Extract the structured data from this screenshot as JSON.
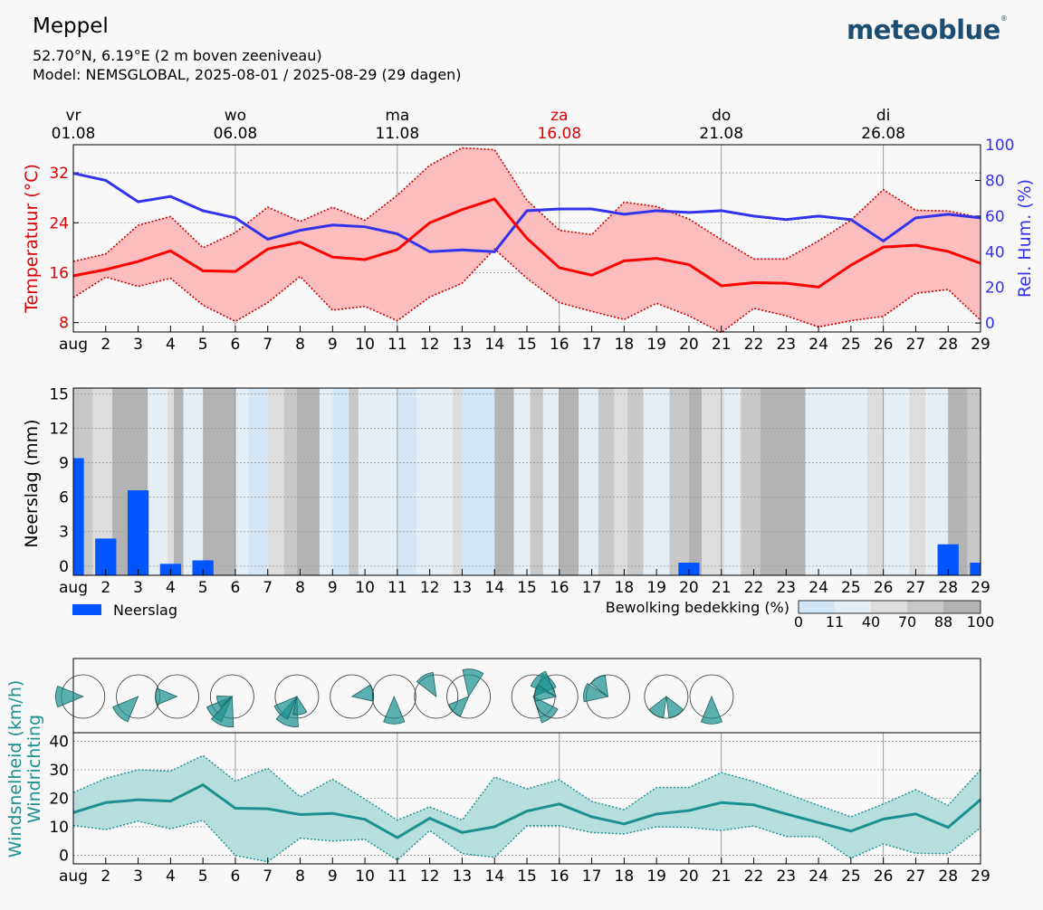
{
  "header": {
    "title": "Meppel",
    "coords": "52.70°N, 6.19°E (2 m boven zeeniveau)",
    "model": "Model: NEMSGLOBAL, 2025-08-01 / 2025-08-29 (29 dagen)",
    "logo": "meteoblue",
    "logo_mark": "®"
  },
  "colors": {
    "temperature": "#ff0000",
    "temp_band": "#fbbdbd",
    "humidity": "#3333ee",
    "precip": "#0055ff",
    "wind": "#1a9090",
    "wind_band": "#b6dedd"
  },
  "top_axis": [
    {
      "weekday": "vr",
      "date": "01.08",
      "day": 1,
      "highlight": false
    },
    {
      "weekday": "wo",
      "date": "06.08",
      "day": 6,
      "highlight": false
    },
    {
      "weekday": "ma",
      "date": "11.08",
      "day": 11,
      "highlight": false
    },
    {
      "weekday": "za",
      "date": "16.08",
      "day": 16,
      "highlight": true
    },
    {
      "weekday": "do",
      "date": "21.08",
      "day": 21,
      "highlight": false
    },
    {
      "weekday": "di",
      "date": "26.08",
      "day": 26,
      "highlight": false
    }
  ],
  "x_ticks": [
    "aug",
    "2",
    "3",
    "4",
    "5",
    "6",
    "7",
    "8",
    "9",
    "10",
    "11",
    "12",
    "13",
    "14",
    "15",
    "16",
    "17",
    "18",
    "19",
    "20",
    "21",
    "22",
    "23",
    "24",
    "25",
    "26",
    "27",
    "28",
    "29"
  ],
  "chart_data": [
    {
      "type": "line",
      "x": [
        1,
        2,
        3,
        4,
        5,
        6,
        7,
        8,
        9,
        10,
        11,
        12,
        13,
        14,
        15,
        16,
        17,
        18,
        19,
        20,
        21,
        22,
        23,
        24,
        25,
        26,
        27,
        28,
        29
      ],
      "ylabel": "Temperatuur (°C)",
      "y2label": "Rel. Hum. (%)",
      "ylim": [
        6.5,
        36.5
      ],
      "yticks": [
        8,
        16,
        24,
        32
      ],
      "y2lim": [
        -5,
        100
      ],
      "y2ticks": [
        0,
        20,
        40,
        60,
        80,
        100
      ],
      "series": [
        {
          "role": "temp_mean",
          "values": [
            15.5,
            16.5,
            17.8,
            19.5,
            16.3,
            16.2,
            19.8,
            20.9,
            18.5,
            18.1,
            19.7,
            24.0,
            26.1,
            27.8,
            21.5,
            16.8,
            15.6,
            17.9,
            18.3,
            17.3,
            13.9,
            14.4,
            14.3,
            13.7,
            17.2,
            20.1,
            20.4,
            19.4,
            17.5
          ]
        },
        {
          "role": "temp_max",
          "values": [
            17.8,
            19.0,
            23.6,
            25.0,
            20.0,
            22.4,
            26.5,
            24.2,
            26.5,
            24.4,
            28.4,
            33.2,
            36.0,
            35.7,
            27.6,
            22.8,
            22.1,
            27.3,
            26.6,
            24.6,
            21.3,
            18.2,
            18.2,
            21.1,
            24.4,
            29.3,
            26.0,
            25.9,
            24.8
          ]
        },
        {
          "role": "temp_min",
          "values": [
            12.0,
            15.3,
            13.8,
            15.1,
            10.8,
            8.2,
            11.2,
            15.4,
            10.0,
            10.6,
            8.3,
            12.1,
            14.3,
            19.8,
            15.1,
            11.2,
            9.8,
            8.5,
            11.1,
            9.1,
            6.4,
            10.3,
            9.1,
            7.3,
            8.3,
            9.0,
            12.7,
            13.3,
            8.4
          ]
        },
        {
          "role": "humidity",
          "values": [
            84,
            80,
            68,
            71,
            63,
            59,
            47,
            52,
            55,
            54,
            50,
            40,
            41,
            40,
            63,
            64,
            64,
            61,
            63,
            62,
            63,
            60,
            58,
            60,
            58,
            46,
            59,
            61,
            59
          ]
        }
      ]
    },
    {
      "type": "bar",
      "x": [
        1,
        2,
        3,
        4,
        5,
        6,
        7,
        8,
        9,
        10,
        11,
        12,
        13,
        14,
        15,
        16,
        17,
        18,
        19,
        20,
        21,
        22,
        23,
        24,
        25,
        26,
        27,
        28,
        29
      ],
      "ylabel": "Neerslag (mm)",
      "ylim": [
        -0.8,
        15.5
      ],
      "yticks": [
        0,
        3,
        6,
        9,
        12,
        15
      ],
      "series": [
        {
          "name": "Neerslag",
          "values": [
            9.4,
            2.4,
            6.6,
            0.2,
            0.5,
            0,
            0,
            0,
            0,
            0,
            0,
            0,
            0,
            0,
            0,
            0,
            0,
            0,
            0,
            0.3,
            0,
            0,
            0,
            0,
            0,
            0,
            0,
            1.9,
            0.3
          ]
        }
      ],
      "cloud_legend_title": "Bewolking bedekking (%)",
      "cloud_legend_ticks": [
        "0",
        "11",
        "40",
        "70",
        "88",
        "100"
      ],
      "cloud_cover": [
        {
          "from": 1,
          "to": 1.6,
          "pct": 70
        },
        {
          "from": 1.6,
          "to": 2.2,
          "pct": 40
        },
        {
          "from": 2.2,
          "to": 3.3,
          "pct": 88
        },
        {
          "from": 3.3,
          "to": 3.9,
          "pct": 11
        },
        {
          "from": 3.9,
          "to": 4.1,
          "pct": 40
        },
        {
          "from": 4.1,
          "to": 4.4,
          "pct": 88
        },
        {
          "from": 4.4,
          "to": 5,
          "pct": 11
        },
        {
          "from": 5,
          "to": 6.0,
          "pct": 88
        },
        {
          "from": 6.0,
          "to": 6.4,
          "pct": 11
        },
        {
          "from": 6.4,
          "to": 7.0,
          "pct": 0
        },
        {
          "from": 7.0,
          "to": 7.5,
          "pct": 40
        },
        {
          "from": 7.5,
          "to": 7.9,
          "pct": 70
        },
        {
          "from": 7.9,
          "to": 8.6,
          "pct": 88
        },
        {
          "from": 8.6,
          "to": 9.0,
          "pct": 11
        },
        {
          "from": 9.0,
          "to": 9.5,
          "pct": 0
        },
        {
          "from": 9.5,
          "to": 9.8,
          "pct": 70
        },
        {
          "from": 9.8,
          "to": 11.0,
          "pct": 11
        },
        {
          "from": 11.0,
          "to": 11.6,
          "pct": 0
        },
        {
          "from": 11.6,
          "to": 12.7,
          "pct": 11
        },
        {
          "from": 12.7,
          "to": 13.0,
          "pct": 40
        },
        {
          "from": 13.0,
          "to": 14.0,
          "pct": 0
        },
        {
          "from": 14.0,
          "to": 14.6,
          "pct": 88
        },
        {
          "from": 14.6,
          "to": 15.1,
          "pct": 11
        },
        {
          "from": 15.1,
          "to": 15.5,
          "pct": 70
        },
        {
          "from": 15.5,
          "to": 16.0,
          "pct": 11
        },
        {
          "from": 16.0,
          "to": 16.6,
          "pct": 88
        },
        {
          "from": 16.6,
          "to": 17.2,
          "pct": 11
        },
        {
          "from": 17.2,
          "to": 17.7,
          "pct": 70
        },
        {
          "from": 17.7,
          "to": 18.1,
          "pct": 40
        },
        {
          "from": 18.1,
          "to": 18.6,
          "pct": 70
        },
        {
          "from": 18.6,
          "to": 19.4,
          "pct": 11
        },
        {
          "from": 19.4,
          "to": 20.0,
          "pct": 70
        },
        {
          "from": 20.0,
          "to": 20.4,
          "pct": 88
        },
        {
          "from": 20.4,
          "to": 21.1,
          "pct": 40
        },
        {
          "from": 21.1,
          "to": 21.6,
          "pct": 11
        },
        {
          "from": 21.6,
          "to": 22.2,
          "pct": 70
        },
        {
          "from": 22.2,
          "to": 23.6,
          "pct": 88
        },
        {
          "from": 23.6,
          "to": 24.6,
          "pct": 11
        },
        {
          "from": 24.6,
          "to": 25.5,
          "pct": 11
        },
        {
          "from": 25.5,
          "to": 26.0,
          "pct": 40
        },
        {
          "from": 26.0,
          "to": 26.8,
          "pct": 11
        },
        {
          "from": 26.8,
          "to": 27.3,
          "pct": 40
        },
        {
          "from": 27.3,
          "to": 28.0,
          "pct": 11
        },
        {
          "from": 28.0,
          "to": 28.6,
          "pct": 88
        },
        {
          "from": 28.6,
          "to": 29.0,
          "pct": 70
        }
      ]
    },
    {
      "type": "area",
      "x": [
        1,
        2,
        3,
        4,
        5,
        6,
        7,
        8,
        9,
        10,
        11,
        12,
        13,
        14,
        15,
        16,
        17,
        18,
        19,
        20,
        21,
        22,
        23,
        24,
        25,
        26,
        27,
        28,
        29
      ],
      "ylabel": "Windsnelheid (km/h)",
      "ylabel2": "Windrichting",
      "ylim": [
        -3,
        43
      ],
      "yticks": [
        0,
        10,
        20,
        30,
        40
      ],
      "series": [
        {
          "role": "wind_mean",
          "values": [
            15,
            18.5,
            19.5,
            19,
            24.7,
            16.5,
            16.3,
            14.3,
            14.7,
            12.6,
            6.2,
            13,
            8,
            10,
            15.5,
            18,
            13.5,
            11,
            14.5,
            15.7,
            18.5,
            17.7,
            14.5,
            11.5,
            8.5,
            12.7,
            14.5,
            9.8,
            19.5
          ]
        },
        {
          "role": "wind_max",
          "values": [
            22,
            27,
            30,
            29.5,
            35,
            26,
            30.5,
            20.5,
            26.7,
            19.7,
            12.3,
            17,
            12.3,
            27.5,
            23.3,
            26.5,
            18.9,
            16,
            23.8,
            23.8,
            29,
            25.9,
            21.7,
            17.5,
            13.5,
            18,
            23,
            17.5,
            30
          ]
        },
        {
          "role": "wind_min",
          "values": [
            10.5,
            9,
            12,
            9.3,
            12.3,
            0,
            -2.3,
            6,
            5,
            5.6,
            -1.7,
            8.7,
            0.6,
            -0.7,
            10.4,
            10.4,
            8,
            7.5,
            10,
            9.8,
            8.7,
            10.3,
            6.6,
            6.5,
            -1,
            4,
            0.7,
            0.6,
            9.7
          ]
        }
      ],
      "wind_roses": [
        {
          "day": 1.3,
          "sectors": [
            [
              270,
              0.9
            ]
          ]
        },
        {
          "day": 3.0,
          "sectors": [
            [
              225,
              0.9
            ]
          ]
        },
        {
          "day": 4.2,
          "sectors": [
            [
              270,
              0.7
            ]
          ]
        },
        {
          "day": 5.9,
          "sectors": [
            [
              225,
              0.9
            ],
            [
              200,
              1.0
            ],
            [
              250,
              0.5
            ]
          ]
        },
        {
          "day": 7.9,
          "sectors": [
            [
              200,
              1.0
            ],
            [
              225,
              0.8
            ],
            [
              170,
              0.6
            ]
          ]
        },
        {
          "day": 9.6,
          "sectors": [
            [
              80,
              0.7
            ]
          ]
        },
        {
          "day": 10.9,
          "sectors": [
            [
              180,
              0.9
            ]
          ]
        },
        {
          "day": 12.2,
          "sectors": [
            [
              330,
              0.8
            ]
          ]
        },
        {
          "day": 13.2,
          "sectors": [
            [
              10,
              0.9
            ],
            [
              225,
              0.7
            ]
          ]
        },
        {
          "day": 15.2,
          "sectors": [
            [
              45,
              0.8
            ],
            [
              140,
              0.9
            ]
          ]
        },
        {
          "day": 15.9,
          "sectors": [
            [
              315,
              0.9
            ],
            [
              280,
              0.7
            ]
          ]
        },
        {
          "day": 17.5,
          "sectors": [
            [
              330,
              0.7
            ],
            [
              280,
              0.8
            ]
          ]
        },
        {
          "day": 19.3,
          "sectors": [
            [
              150,
              0.7
            ],
            [
              210,
              0.7
            ]
          ]
        },
        {
          "day": 20.7,
          "sectors": [
            [
              180,
              0.9
            ]
          ]
        }
      ]
    }
  ]
}
